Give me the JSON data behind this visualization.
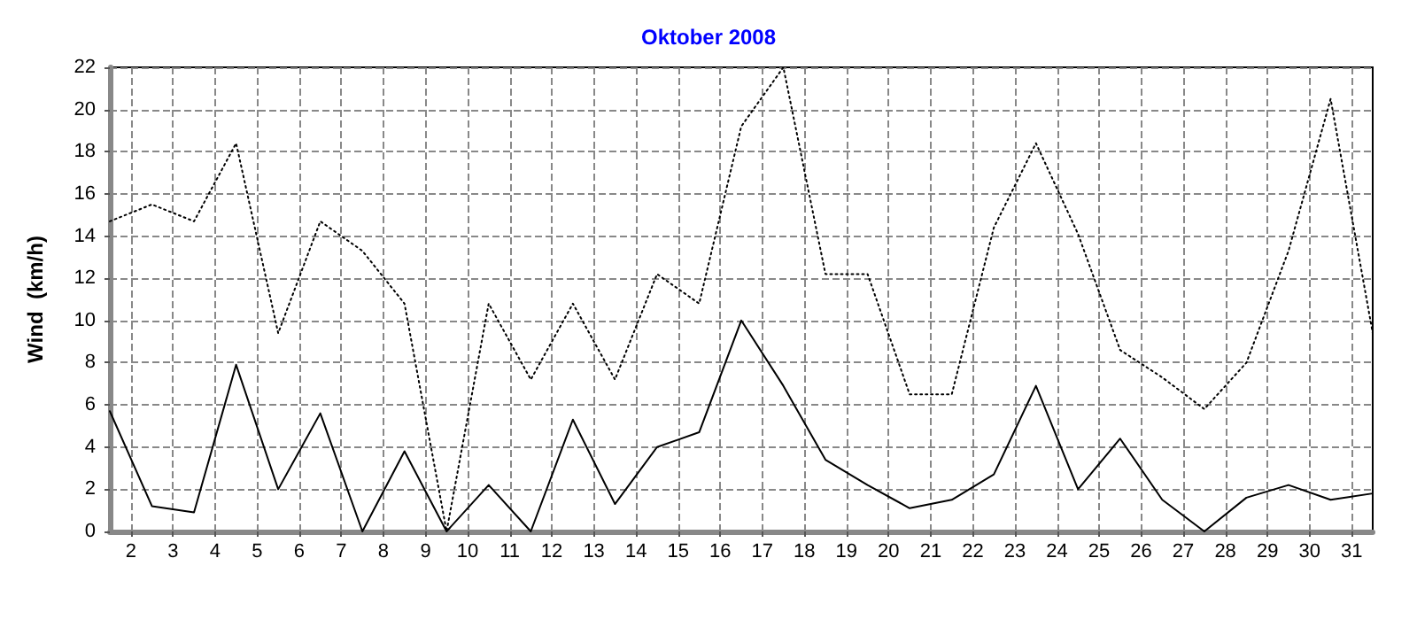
{
  "chart_data": {
    "type": "line",
    "title": "Oktober 2008",
    "ylabel": "Wind  (km/h)",
    "x": [
      1.5,
      2.5,
      3.5,
      4.5,
      5.5,
      6.5,
      7.5,
      8.5,
      9.5,
      10.5,
      11.5,
      12.5,
      13.5,
      14.5,
      15.5,
      16.5,
      17.5,
      18.5,
      19.5,
      20.5,
      21.5,
      22.5,
      23.5,
      24.5,
      25.5,
      26.5,
      27.5,
      28.5,
      29.5,
      30.5,
      31.5
    ],
    "series": [
      {
        "color": "#000000",
        "line_style": "dotted",
        "values": [
          14.7,
          15.5,
          14.7,
          18.4,
          9.4,
          14.7,
          13.3,
          10.8,
          0,
          10.8,
          7.2,
          10.8,
          7.2,
          12.2,
          10.8,
          19.2,
          22,
          12.2,
          12.2,
          6.5,
          6.5,
          14.4,
          18.4,
          14.1,
          8.6,
          7.3,
          5.8,
          8,
          13.3,
          20.5,
          9.4
        ]
      },
      {
        "color": "#000000",
        "line_style": "solid",
        "values": [
          5.7,
          1.2,
          0.9,
          7.9,
          2,
          5.6,
          0,
          3.8,
          0,
          2.2,
          0,
          5.3,
          1.3,
          4,
          4.7,
          10,
          6.9,
          3.4,
          2.2,
          1.1,
          1.5,
          2.7,
          6.9,
          2,
          4.4,
          1.5,
          0,
          1.6,
          2.2,
          1.5,
          1.8
        ]
      }
    ],
    "xlim": [
      1.5,
      31.5
    ],
    "xticks": [
      2,
      3,
      4,
      5,
      6,
      7,
      8,
      9,
      10,
      11,
      12,
      13,
      14,
      15,
      16,
      17,
      18,
      19,
      20,
      21,
      22,
      23,
      24,
      25,
      26,
      27,
      28,
      29,
      30,
      31
    ],
    "ylim": [
      0,
      22
    ],
    "yticks": [
      0,
      2,
      4,
      6,
      8,
      10,
      12,
      14,
      16,
      18,
      20,
      22
    ],
    "grid": true,
    "marker": "none"
  }
}
